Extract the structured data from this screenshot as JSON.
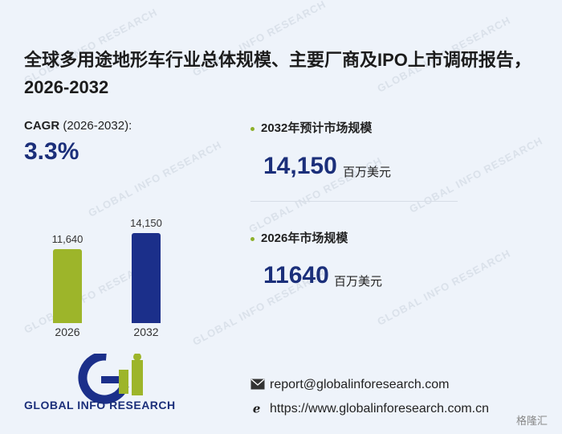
{
  "watermark": "GLOBAL INFO RESEARCH",
  "title": "全球多用途地形车行业总体规模、主要厂商及IPO上市调研报告，2026-2032",
  "cagr": {
    "label": "CAGR",
    "period": "(2026-2032):",
    "value": "3.3%"
  },
  "chart_data": {
    "type": "bar",
    "categories": [
      "2026",
      "2032"
    ],
    "values": [
      11640,
      14150
    ],
    "value_labels": [
      "11,640",
      "14,150"
    ],
    "ylim": [
      0,
      14150
    ],
    "colors": [
      "#9db52a",
      "#1b2f8a"
    ]
  },
  "kpis": [
    {
      "label": "2032年预计市场规模",
      "value": "14,150",
      "unit": "百万美元"
    },
    {
      "label": "2026年市场规模",
      "value": "11640",
      "unit": "百万美元"
    }
  ],
  "logo": {
    "text": "GLOBAL INFO RESEARCH"
  },
  "contact": {
    "email": "report@globalinforesearch.com",
    "website": "https://www.globalinforesearch.com.cn"
  },
  "badge": "格隆汇",
  "colors": {
    "accent": "#1b2f7a",
    "green": "#8db02a"
  }
}
